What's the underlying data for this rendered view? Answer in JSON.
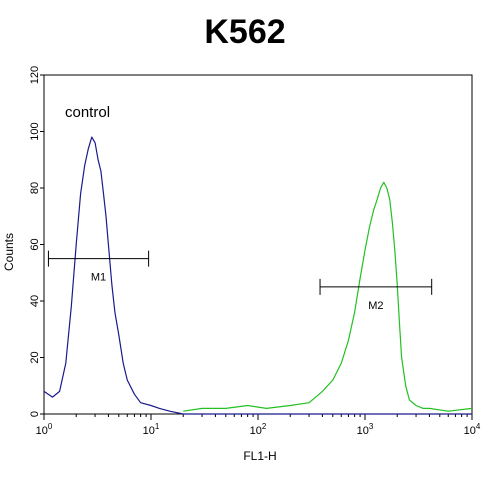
{
  "chart_data": {
    "type": "line",
    "title": "K562",
    "xlabel": "FL1-H",
    "ylabel": "Counts",
    "xscale": "log",
    "xlim": [
      1,
      10000
    ],
    "ylim": [
      0,
      120
    ],
    "x_ticks": [
      {
        "base": "10",
        "exp": "0"
      },
      {
        "base": "10",
        "exp": "1"
      },
      {
        "base": "10",
        "exp": "2"
      },
      {
        "base": "10",
        "exp": "3"
      },
      {
        "base": "10",
        "exp": "4"
      }
    ],
    "y_ticks": [
      "0",
      "20",
      "40",
      "60",
      "80",
      "100",
      "120"
    ],
    "annotation": "control",
    "series": [
      {
        "color": "#1a1a8c",
        "x": [
          1.0,
          1.2,
          1.4,
          1.6,
          1.8,
          2.0,
          2.2,
          2.4,
          2.6,
          2.8,
          3.0,
          3.2,
          3.4,
          3.6,
          3.8,
          4.0,
          4.3,
          4.6,
          5.0,
          5.5,
          6.0,
          7.0,
          8.0,
          10.0,
          12.0,
          15.0,
          20.0,
          30.0,
          100.0,
          1000.0,
          10000.0
        ],
        "values": [
          8,
          6,
          8,
          18,
          38,
          60,
          78,
          88,
          94,
          98,
          96,
          90,
          86,
          78,
          70,
          60,
          46,
          36,
          28,
          18,
          12,
          7,
          4,
          3,
          2,
          1,
          0,
          0,
          0,
          0,
          0
        ]
      },
      {
        "color": "#22c022",
        "x": [
          20,
          30,
          50,
          80,
          120,
          200,
          300,
          400,
          500,
          600,
          700,
          800,
          900,
          1000,
          1100,
          1200,
          1300,
          1400,
          1500,
          1600,
          1700,
          1800,
          1900,
          2000,
          2100,
          2200,
          2400,
          2600,
          3000,
          3500,
          4000,
          6000,
          10000
        ],
        "values": [
          1,
          2,
          2,
          3,
          2,
          3,
          4,
          8,
          12,
          18,
          26,
          36,
          48,
          58,
          66,
          72,
          76,
          80,
          82,
          80,
          76,
          68,
          58,
          46,
          32,
          20,
          10,
          5,
          3,
          2,
          2,
          1,
          2
        ]
      }
    ],
    "gates": [
      {
        "label": "M1",
        "x_start": 1.1,
        "x_end": 9.5,
        "y": 55
      },
      {
        "label": "M2",
        "x_start": 380,
        "x_end": 4200,
        "y": 45
      }
    ]
  }
}
